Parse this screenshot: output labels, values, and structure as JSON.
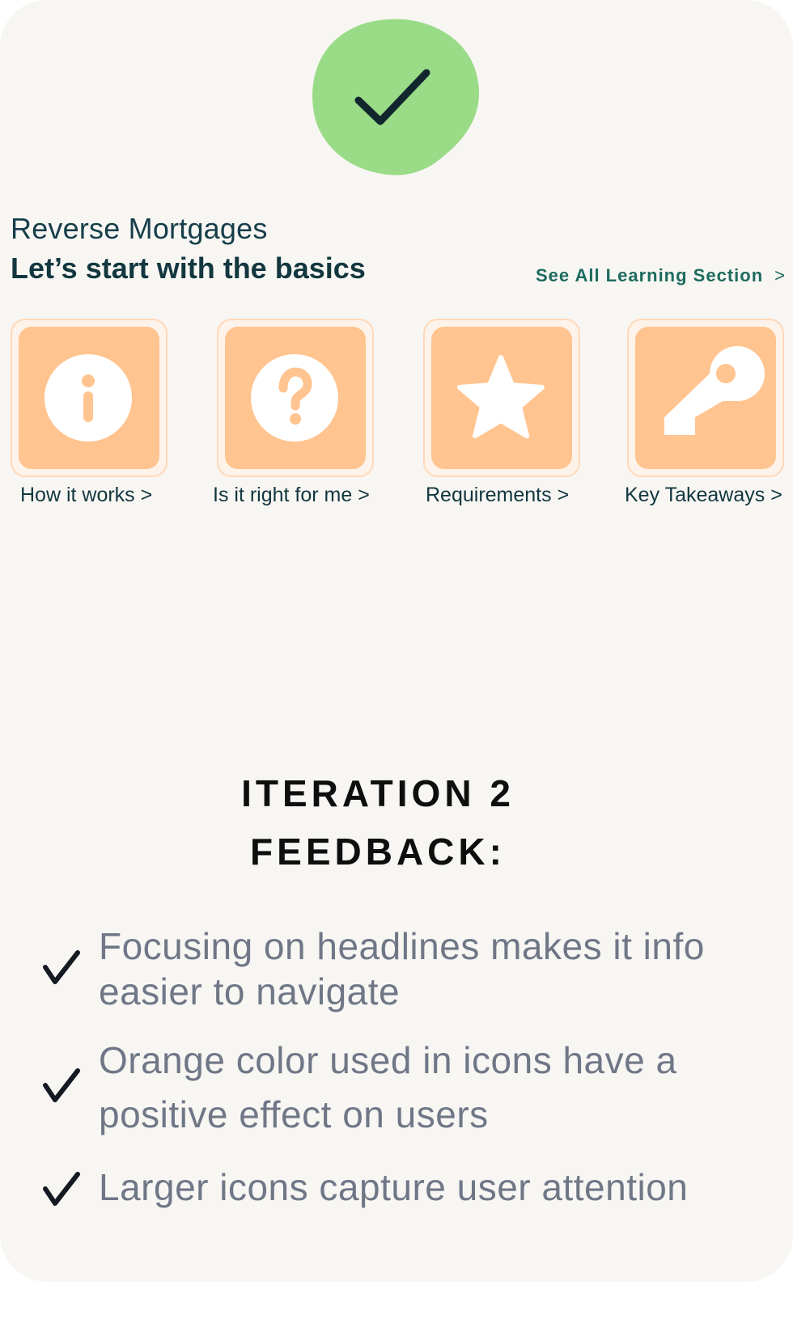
{
  "colors": {
    "card_background": "#f8f6f3",
    "badge_green": "#99db86",
    "tile_orange": "#ffc48f",
    "heading_teal": "#12373f",
    "link_teal": "#1c6b5e",
    "feedback_gray": "#6f7787"
  },
  "badge": {
    "icon": "checkmark-icon"
  },
  "section": {
    "eyebrow": "Reverse Mortgages",
    "title": "Let’s start with the basics",
    "see_all": "See All Learning Section",
    "see_all_chevron": ">"
  },
  "tiles": [
    {
      "label": "How it works >",
      "icon": "info-icon"
    },
    {
      "label": "Is it right for me >",
      "icon": "question-icon"
    },
    {
      "label": "Requirements >",
      "icon": "star-icon"
    },
    {
      "label": "Key Takeaways >",
      "icon": "key-icon"
    }
  ],
  "feedback": {
    "heading_line1": "ITERATION 2",
    "heading_line2": "FEEDBACK:",
    "items": [
      {
        "line1": "Focusing on headlines makes it info",
        "line2": "easier to navigate"
      },
      {
        "line1": "Orange color used in icons have a",
        "line2": "positive effect on users"
      },
      {
        "line1": "Larger icons capture user attention"
      }
    ]
  }
}
